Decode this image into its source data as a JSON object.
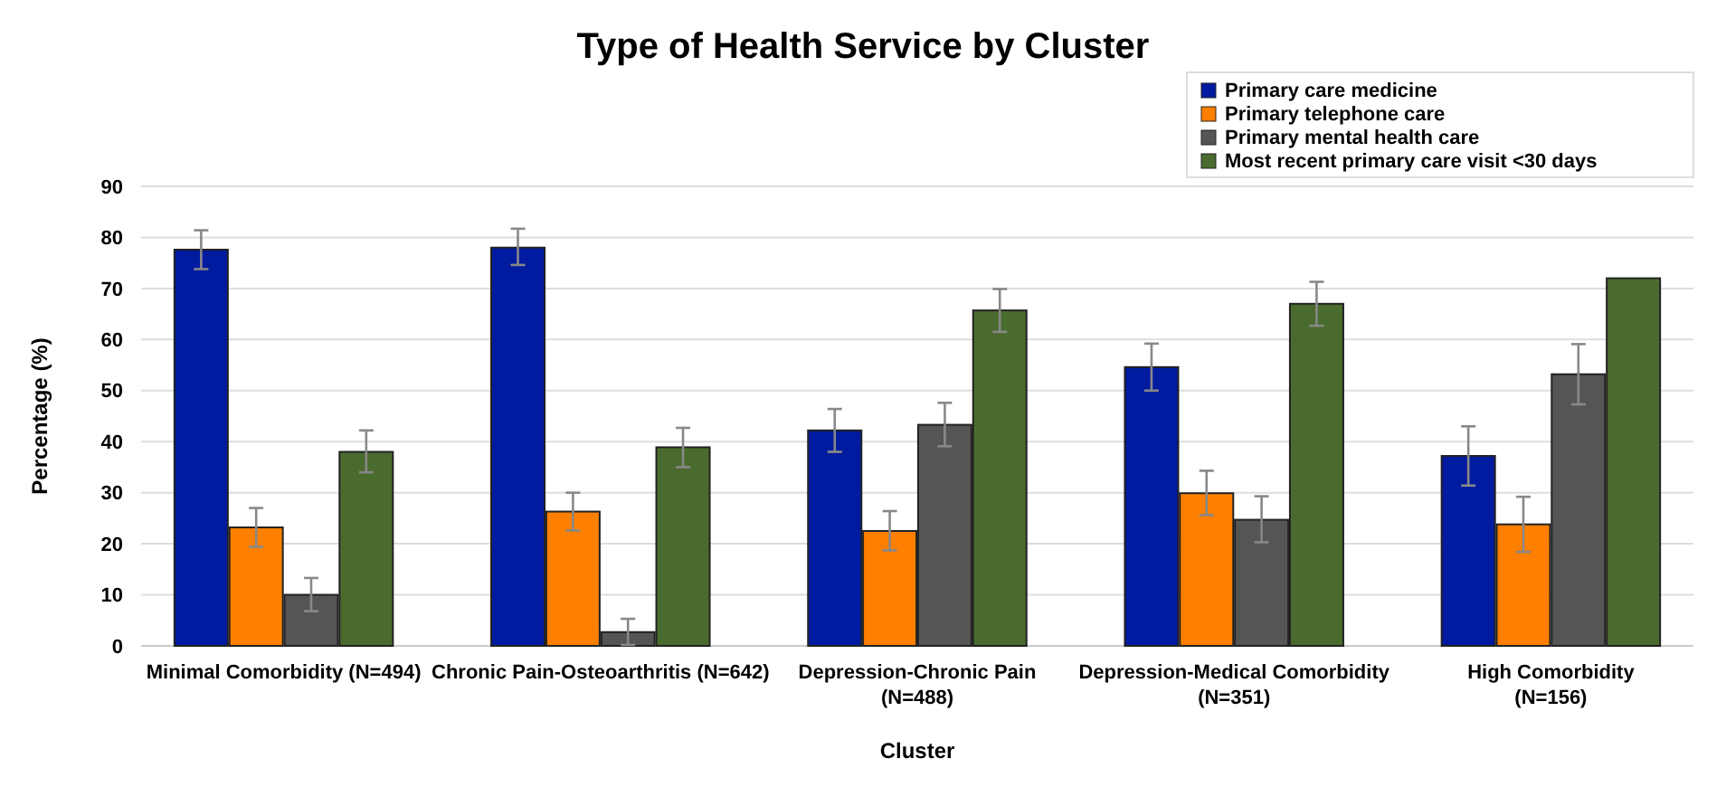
{
  "chart_data": {
    "type": "bar",
    "title": "Type of Health Service by Cluster",
    "xlabel": "Cluster",
    "ylabel": "Percentage (%)",
    "categories": [
      "Minimal Comorbidity (N=494)",
      "Chronic Pain-Osteoarthritis (N=642)",
      "Depression-Chronic Pain\n(N=488)",
      "Depression-Medical Comorbidity\n(N=351)",
      "High Comorbidity\n(N=156)"
    ],
    "series": [
      {
        "name": "Primary care medicine",
        "color": "#001aa0",
        "values": [
          77.6,
          78,
          42.2,
          54.6,
          37.2
        ],
        "errors": [
          [
            73.8,
            81.4
          ],
          [
            74.6,
            81.7
          ],
          [
            38,
            46.4
          ],
          [
            50,
            59.2
          ],
          [
            31.4,
            43
          ]
        ]
      },
      {
        "name": "Primary telephone care",
        "color": "#ff7f00",
        "values": [
          23.2,
          26.3,
          22.5,
          29.9,
          23.8
        ],
        "errors": [
          [
            19.4,
            27
          ],
          [
            22.6,
            30
          ],
          [
            18.7,
            26.4
          ],
          [
            25.6,
            34.3
          ],
          [
            18.4,
            29.2
          ]
        ]
      },
      {
        "name": "Primary mental health care",
        "color": "#555555",
        "values": [
          10,
          2.7,
          43.3,
          24.7,
          53.2
        ],
        "errors": [
          [
            6.8,
            13.3
          ],
          [
            0.2,
            5.3
          ],
          [
            39.1,
            47.6
          ],
          [
            20.3,
            29.3
          ],
          [
            47.3,
            59.1
          ]
        ]
      },
      {
        "name": "Most recent primary care visit <30 days",
        "color": "#4a6b2e",
        "values": [
          38,
          38.9,
          65.7,
          67,
          72
        ],
        "errors": [
          [
            34,
            42.2
          ],
          [
            35,
            42.7
          ],
          [
            61.5,
            69.9
          ],
          [
            62.7,
            71.3
          ],
          null
        ]
      }
    ],
    "ylim": [
      0,
      90
    ],
    "yticks": [
      0,
      10,
      20,
      30,
      40,
      50,
      60,
      70,
      80,
      90
    ],
    "grid": "y",
    "legend": "top right"
  }
}
